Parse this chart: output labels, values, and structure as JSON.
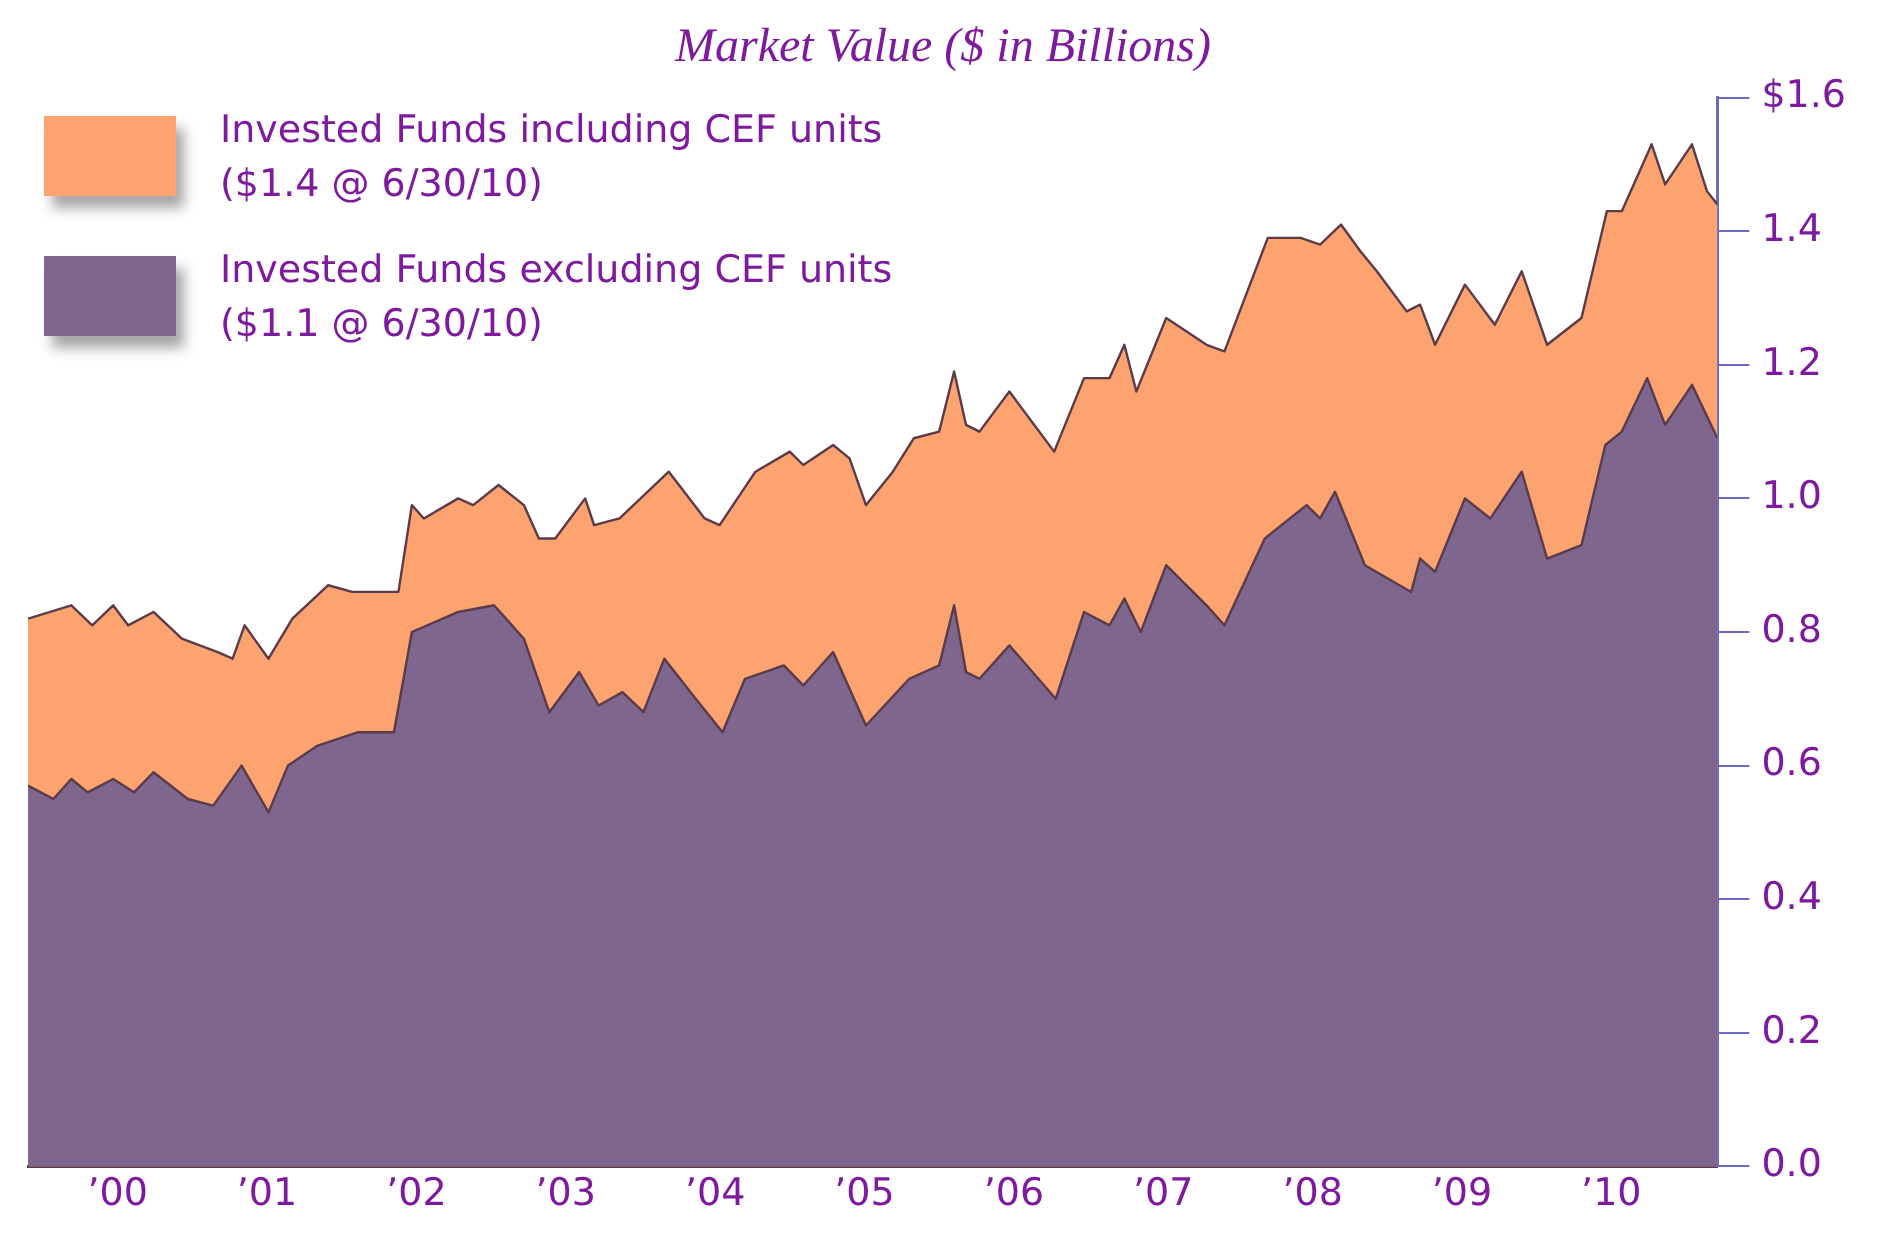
{
  "chart_data": {
    "type": "area",
    "title": "Market Value ($ in Billions)",
    "series": [
      {
        "name": "Invested Funds including CEF units\n($1.4 @ 6/30/10)",
        "color": "#fca36f",
        "x": [
          1999.4,
          1999.69,
          1999.83,
          1999.97,
          2000.07,
          2000.24,
          2000.43,
          2000.67,
          2000.77,
          2000.85,
          2001.01,
          2001.17,
          2001.41,
          2001.57,
          2001.88,
          2001.97,
          2002.05,
          2002.28,
          2002.38,
          2002.55,
          2002.72,
          2002.82,
          2002.93,
          2003.13,
          2003.19,
          2003.36,
          2003.69,
          2003.93,
          2004.03,
          2004.27,
          2004.5,
          2004.59,
          2004.79,
          2004.9,
          2005.01,
          2005.19,
          2005.33,
          2005.5,
          2005.6,
          2005.68,
          2005.77,
          2005.97,
          2006.27,
          2006.47,
          2006.64,
          2006.74,
          2006.82,
          2007.02,
          2007.29,
          2007.41,
          2007.7,
          2007.92,
          2008.05,
          2008.19,
          2008.32,
          2008.43,
          2008.63,
          2008.72,
          2008.82,
          2009.02,
          2009.22,
          2009.4,
          2009.57,
          2009.8,
          2009.97,
          2010.07,
          2010.27,
          2010.36,
          2010.54,
          2010.64,
          2010.71
        ],
        "values": [
          0.82,
          0.84,
          0.81,
          0.84,
          0.81,
          0.83,
          0.79,
          0.77,
          0.76,
          0.81,
          0.76,
          0.82,
          0.87,
          0.86,
          0.86,
          0.99,
          0.97,
          1.0,
          0.99,
          1.02,
          0.99,
          0.94,
          0.94,
          1.0,
          0.96,
          0.97,
          1.04,
          0.97,
          0.96,
          1.04,
          1.07,
          1.05,
          1.08,
          1.06,
          0.99,
          1.04,
          1.09,
          1.1,
          1.19,
          1.11,
          1.1,
          1.16,
          1.07,
          1.18,
          1.18,
          1.23,
          1.16,
          1.27,
          1.23,
          1.22,
          1.39,
          1.39,
          1.38,
          1.41,
          1.37,
          1.34,
          1.28,
          1.29,
          1.23,
          1.32,
          1.26,
          1.34,
          1.23,
          1.27,
          1.43,
          1.43,
          1.53,
          1.47,
          1.53,
          1.46,
          1.44
        ]
      },
      {
        "name": "Invested Funds excluding CEF units\n($1.1 @ 6/30/10)",
        "color": "#7e668f",
        "x": [
          1999.4,
          1999.57,
          1999.69,
          1999.8,
          1999.97,
          2000.11,
          2000.24,
          2000.47,
          2000.64,
          2000.83,
          2001.01,
          2001.14,
          2001.34,
          2001.61,
          2001.85,
          2001.97,
          2002.28,
          2002.52,
          2002.72,
          2002.89,
          2003.09,
          2003.22,
          2003.38,
          2003.52,
          2003.66,
          2003.87,
          2004.05,
          2004.2,
          2004.46,
          2004.59,
          2004.79,
          2005.01,
          2005.3,
          2005.5,
          2005.6,
          2005.68,
          2005.77,
          2005.97,
          2006.28,
          2006.47,
          2006.64,
          2006.74,
          2006.85,
          2007.02,
          2007.29,
          2007.41,
          2007.68,
          2007.96,
          2008.05,
          2008.15,
          2008.35,
          2008.66,
          2008.72,
          2008.82,
          2009.02,
          2009.19,
          2009.4,
          2009.57,
          2009.8,
          2009.96,
          2010.07,
          2010.24,
          2010.36,
          2010.54,
          2010.71
        ],
        "values": [
          0.57,
          0.55,
          0.58,
          0.56,
          0.58,
          0.56,
          0.59,
          0.55,
          0.54,
          0.6,
          0.53,
          0.6,
          0.63,
          0.65,
          0.65,
          0.8,
          0.83,
          0.84,
          0.79,
          0.68,
          0.74,
          0.69,
          0.71,
          0.68,
          0.76,
          0.7,
          0.65,
          0.73,
          0.75,
          0.72,
          0.77,
          0.66,
          0.73,
          0.75,
          0.84,
          0.74,
          0.73,
          0.78,
          0.7,
          0.83,
          0.81,
          0.85,
          0.8,
          0.9,
          0.84,
          0.81,
          0.94,
          0.99,
          0.97,
          1.01,
          0.9,
          0.86,
          0.91,
          0.89,
          1.0,
          0.97,
          1.04,
          0.91,
          0.93,
          1.08,
          1.1,
          1.18,
          1.11,
          1.17,
          1.09
        ]
      }
    ],
    "xlim": [
      1999.4,
      2010.71
    ],
    "xticks": [
      {
        "value": 2000,
        "label": "’00"
      },
      {
        "value": 2001,
        "label": "’01"
      },
      {
        "value": 2002,
        "label": "’02"
      },
      {
        "value": 2003,
        "label": "’03"
      },
      {
        "value": 2004,
        "label": "’04"
      },
      {
        "value": 2005,
        "label": "’05"
      },
      {
        "value": 2006,
        "label": "’06"
      },
      {
        "value": 2007,
        "label": "’07"
      },
      {
        "value": 2008,
        "label": "’08"
      },
      {
        "value": 2009,
        "label": "’09"
      },
      {
        "value": 2010,
        "label": "’10"
      }
    ],
    "ylim": [
      0,
      1.6
    ],
    "yticks": [
      {
        "value": 0,
        "label": "0.0"
      },
      0.2,
      0.4,
      0.6,
      0.8,
      {
        "value": 1,
        "label": "1.0"
      },
      1.2,
      1.4,
      {
        "value": 1.6,
        "label": "$1.6"
      }
    ],
    "grid": false,
    "legend": "top left"
  }
}
